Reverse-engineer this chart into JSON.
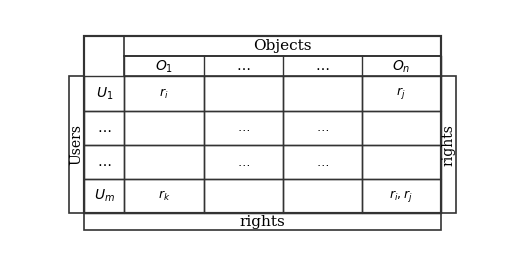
{
  "objects_label": "Objects",
  "users_label": "Users",
  "rights_label_right": "rights",
  "rights_label_bottom": "rights",
  "col_headers": [
    "$O_1$",
    "$\\ldots$",
    "$\\ldots$",
    "$O_n$"
  ],
  "row_headers": [
    "$U_1$",
    "$\\ldots$",
    "$\\ldots$",
    "$U_m$"
  ],
  "cell_data": [
    [
      "$r_i$",
      "",
      "",
      "$r_j$"
    ],
    [
      "",
      "$\\ldots$",
      "$\\ldots$",
      ""
    ],
    [
      "",
      "$\\ldots$",
      "$\\ldots$",
      ""
    ],
    [
      "$r_k$",
      "",
      "",
      "$r_i, r_j$"
    ]
  ],
  "bg_color": "#ffffff",
  "line_color": "#333333",
  "font_size": 9,
  "header_font_size": 10
}
